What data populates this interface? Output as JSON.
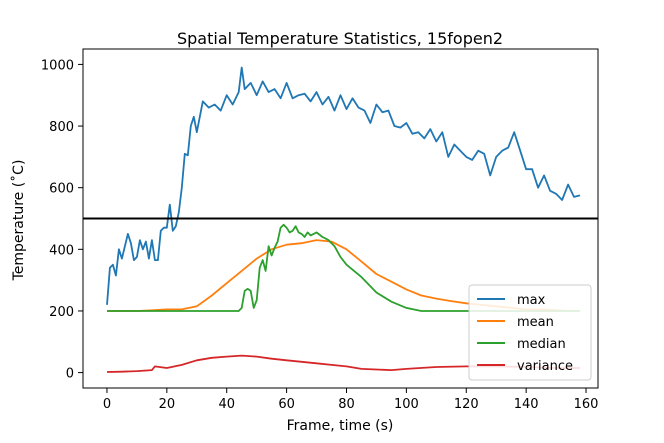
{
  "chart_data": {
    "type": "line",
    "title": "Spatial Temperature Statistics, 15fopen2",
    "xlabel": "Frame, time (s)",
    "ylabel": "Temperature (˚C)",
    "xlim": [
      -8,
      164
    ],
    "ylim": [
      -50,
      1050
    ],
    "xticks": [
      0,
      20,
      40,
      60,
      80,
      100,
      120,
      140,
      160
    ],
    "yticks": [
      0,
      200,
      400,
      600,
      800,
      1000
    ],
    "grid": false,
    "legend_position": "lower-right",
    "hline": {
      "y": 500,
      "color": "#000000"
    },
    "series": [
      {
        "name": "max",
        "color": "#1f77b4",
        "x": [
          0,
          1,
          2,
          3,
          4,
          5,
          6,
          7,
          8,
          9,
          10,
          11,
          12,
          13,
          14,
          15,
          16,
          17,
          18,
          19,
          20,
          21,
          22,
          23,
          24,
          25,
          26,
          27,
          28,
          29,
          30,
          32,
          34,
          36,
          38,
          40,
          42,
          44,
          45,
          46,
          48,
          50,
          52,
          54,
          56,
          58,
          60,
          62,
          64,
          66,
          68,
          70,
          72,
          74,
          76,
          78,
          80,
          82,
          84,
          86,
          88,
          90,
          92,
          94,
          96,
          98,
          100,
          102,
          104,
          106,
          108,
          110,
          112,
          114,
          116,
          118,
          120,
          122,
          124,
          126,
          128,
          130,
          132,
          134,
          136,
          138,
          140,
          142,
          144,
          146,
          148,
          150,
          152,
          154,
          156,
          158
        ],
        "values": [
          220,
          340,
          350,
          315,
          400,
          370,
          410,
          450,
          420,
          365,
          375,
          430,
          400,
          425,
          370,
          430,
          365,
          365,
          460,
          470,
          470,
          545,
          460,
          475,
          520,
          600,
          710,
          705,
          800,
          830,
          780,
          880,
          860,
          870,
          850,
          900,
          870,
          910,
          990,
          920,
          940,
          900,
          945,
          910,
          920,
          890,
          940,
          890,
          900,
          905,
          880,
          910,
          870,
          895,
          850,
          900,
          855,
          890,
          860,
          850,
          810,
          870,
          845,
          850,
          800,
          795,
          810,
          775,
          780,
          760,
          790,
          750,
          780,
          700,
          740,
          720,
          700,
          690,
          720,
          710,
          640,
          700,
          720,
          730,
          780,
          720,
          660,
          660,
          600,
          640,
          590,
          580,
          560,
          610,
          570,
          575
        ]
      },
      {
        "name": "mean",
        "color": "#ff7f0e",
        "x": [
          0,
          10,
          15,
          20,
          25,
          30,
          35,
          40,
          45,
          50,
          55,
          60,
          65,
          70,
          75,
          80,
          85,
          90,
          95,
          100,
          105,
          110,
          115,
          120,
          125,
          130,
          135,
          140,
          145,
          150,
          155,
          158
        ],
        "values": [
          200,
          200,
          202,
          205,
          205,
          215,
          250,
          290,
          330,
          370,
          400,
          415,
          420,
          430,
          425,
          400,
          360,
          320,
          295,
          270,
          250,
          240,
          232,
          225,
          220,
          215,
          210,
          205,
          205,
          202,
          200,
          200
        ]
      },
      {
        "name": "median",
        "color": "#2ca02c",
        "x": [
          0,
          44,
          45,
          46,
          47,
          48,
          49,
          50,
          51,
          52,
          53,
          54,
          55,
          56,
          57,
          58,
          59,
          60,
          61,
          62,
          63,
          64,
          65,
          66,
          67,
          68,
          69,
          70,
          72,
          74,
          76,
          78,
          80,
          85,
          90,
          95,
          100,
          105,
          108,
          110,
          158
        ],
        "values": [
          200,
          200,
          210,
          265,
          272,
          265,
          210,
          235,
          340,
          365,
          330,
          410,
          380,
          405,
          425,
          470,
          480,
          470,
          455,
          460,
          475,
          455,
          450,
          440,
          455,
          445,
          450,
          455,
          440,
          430,
          410,
          375,
          350,
          310,
          260,
          230,
          210,
          200,
          200,
          200,
          200
        ]
      },
      {
        "name": "variance",
        "color": "#d62728",
        "x": [
          0,
          5,
          10,
          15,
          16,
          20,
          25,
          30,
          35,
          40,
          45,
          50,
          55,
          60,
          65,
          70,
          75,
          80,
          85,
          90,
          95,
          100,
          110,
          120,
          130,
          140,
          150,
          158
        ],
        "values": [
          2,
          3,
          5,
          8,
          20,
          15,
          25,
          40,
          48,
          52,
          55,
          52,
          45,
          40,
          35,
          30,
          25,
          20,
          12,
          10,
          8,
          12,
          18,
          20,
          20,
          18,
          15,
          15
        ]
      }
    ]
  }
}
